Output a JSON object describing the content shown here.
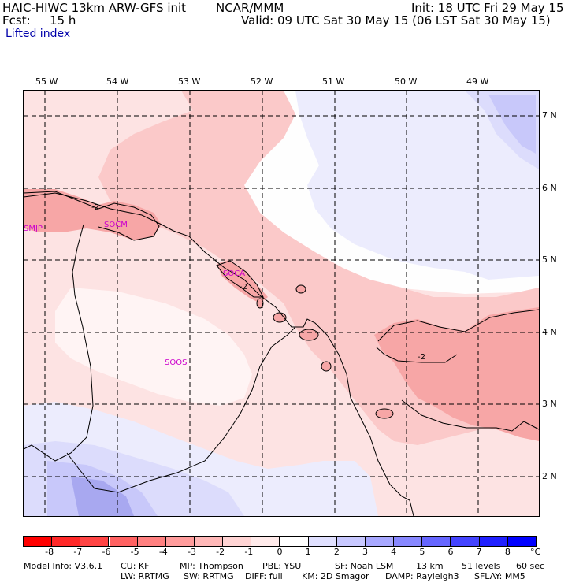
{
  "header": {
    "title_left": "HAIC-HIWC 13km ARW-GFS init",
    "org": "NCAR/MMM",
    "init": "Init: 18 UTC Fri 29 May 15",
    "fcst_label": "Fcst:",
    "fcst_value": "15 h",
    "valid": "Valid: 09 UTC Sat 30 May 15 (06 LST Sat 30 May 15)",
    "field": "Lifted index"
  },
  "map": {
    "lon_labels": [
      "55 W",
      "54 W",
      "53 W",
      "52 W",
      "51 W",
      "50 W",
      "49 W"
    ],
    "lat_labels": [
      "7 N",
      "6 N",
      "5 N",
      "4 N",
      "3 N",
      "2 N"
    ],
    "stations": [
      "SMJP",
      "SOCM",
      "SOCA",
      "SOOS"
    ],
    "contour_labels": [
      "-2",
      "-2",
      "-2"
    ],
    "colors": {
      "pos3": "#c8c8fa",
      "pos2": "#dcdcfc",
      "pos1": "#ececfd",
      "zero": "#ffffff",
      "neg1": "#fde3e3",
      "neg2": "#fbc9c9",
      "neg3": "#f8a9a9",
      "station": "#cc00cc"
    }
  },
  "colorbar": {
    "ticks": [
      "-8",
      "-7",
      "-6",
      "-5",
      "-4",
      "-3",
      "-2",
      "-1",
      "0",
      "1",
      "2",
      "3",
      "4",
      "5",
      "6",
      "7",
      "8"
    ],
    "unit": "°C",
    "colors": [
      "#ff0000",
      "#ff2828",
      "#ff4444",
      "#ff6262",
      "#ff8080",
      "#ff9c9c",
      "#ffb8b8",
      "#ffd4d4",
      "#ffeaea",
      "#ffffff",
      "#e0e0ff",
      "#c8c8ff",
      "#a8a8ff",
      "#8888ff",
      "#6666ff",
      "#4444ff",
      "#2020ff",
      "#0000ff"
    ]
  },
  "footer": {
    "line1": [
      "Model Info: V3.6.1",
      "CU: KF",
      "MP: Thompson",
      "PBL: YSU",
      "SF: Noah LSM",
      "13 km",
      "51 levels",
      "60 sec"
    ],
    "line2": [
      "LW: RRTMG",
      "SW: RRTMG",
      "DIFF: full",
      "KM: 2D Smagor",
      "DAMP: Rayleigh3",
      "SFLAY: MM5"
    ]
  }
}
